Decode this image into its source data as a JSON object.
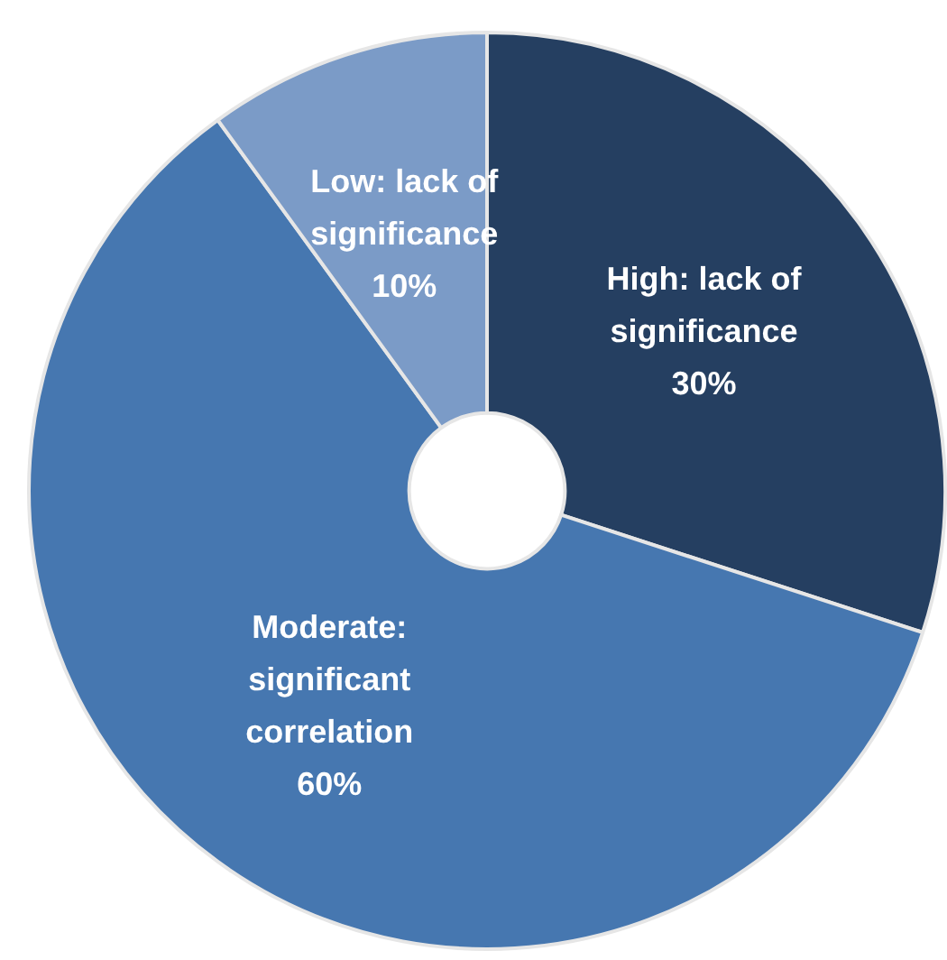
{
  "chart_data": {
    "type": "donut",
    "categories": [
      "High: lack of significance",
      "Moderate: significant correlation",
      "Low: lack of significance"
    ],
    "values": [
      30,
      60,
      10
    ],
    "value_labels": [
      "30%",
      "60%",
      "10%"
    ],
    "colors": [
      "#253f61",
      "#4677b0",
      "#7b9bc7"
    ],
    "legend": false
  }
}
